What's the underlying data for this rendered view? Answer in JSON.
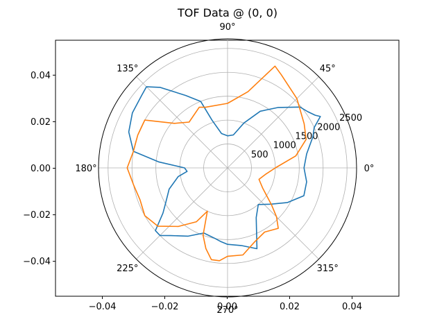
{
  "chart_data": {
    "type": "line",
    "title": "TOF Data @ (0, 0)",
    "cartesian_axes": {
      "x_ticks": [
        "−0.04",
        "−0.02",
        "0.00",
        "0.02",
        "0.04"
      ],
      "x_tick_values": [
        -0.04,
        -0.02,
        0.0,
        0.02,
        0.04
      ],
      "y_ticks": [
        "−0.04",
        "−0.02",
        "0.00",
        "0.02",
        "0.04"
      ],
      "y_tick_values": [
        -0.04,
        -0.02,
        0.0,
        0.02,
        0.04
      ],
      "xlim": [
        -0.055,
        0.055
      ],
      "ylim": [
        -0.055,
        0.055
      ]
    },
    "polar_axes": {
      "theta_ticks": [
        "0°",
        "45°",
        "90°",
        "135°",
        "180°",
        "225°",
        "270°",
        "315°"
      ],
      "theta_tick_values": [
        0,
        45,
        90,
        135,
        180,
        225,
        270,
        315
      ],
      "r_ticks": [
        "500",
        "1000",
        "1500",
        "2000",
        "2500"
      ],
      "r_tick_values": [
        500,
        1000,
        1500,
        2000,
        2500
      ],
      "rlim": [
        0,
        2700
      ],
      "grid": true,
      "label_angle_deg": 22.5
    },
    "series": [
      {
        "color": "#1f77b4",
        "points": [
          [
            0,
            1600
          ],
          [
            10,
            1680
          ],
          [
            20,
            1900
          ],
          [
            25,
            2000
          ],
          [
            29,
            2220
          ],
          [
            31,
            2140
          ],
          [
            35,
            2050
          ],
          [
            40,
            1980
          ],
          [
            50,
            1650
          ],
          [
            60,
            1370
          ],
          [
            70,
            1000
          ],
          [
            80,
            700
          ],
          [
            90,
            670
          ],
          [
            100,
            730
          ],
          [
            108,
            1050
          ],
          [
            112,
            1500
          ],
          [
            120,
            1750
          ],
          [
            130,
            2200
          ],
          [
            135,
            2400
          ],
          [
            140,
            2350
          ],
          [
            150,
            2300
          ],
          [
            160,
            2200
          ],
          [
            170,
            2000
          ],
          [
            175,
            1450
          ],
          [
            180,
            900
          ],
          [
            185,
            850
          ],
          [
            190,
            1050
          ],
          [
            200,
            1300
          ],
          [
            210,
            1500
          ],
          [
            215,
            1650
          ],
          [
            221,
            2000
          ],
          [
            225,
            2000
          ],
          [
            230,
            1850
          ],
          [
            240,
            1650
          ],
          [
            250,
            1450
          ],
          [
            260,
            1500
          ],
          [
            265,
            1550
          ],
          [
            270,
            1600
          ],
          [
            280,
            1650
          ],
          [
            290,
            1800
          ],
          [
            300,
            1200
          ],
          [
            310,
            1000
          ],
          [
            320,
            1180
          ],
          [
            330,
            1450
          ],
          [
            340,
            1700
          ],
          [
            350,
            1680
          ],
          [
            360,
            1600
          ]
        ]
      },
      {
        "color": "#ff7f0e",
        "points": [
          [
            0,
            1000
          ],
          [
            10,
            1450
          ],
          [
            20,
            1750
          ],
          [
            30,
            1850
          ],
          [
            45,
            2050
          ],
          [
            60,
            2250
          ],
          [
            65,
            2350
          ],
          [
            75,
            1650
          ],
          [
            90,
            1350
          ],
          [
            110,
            1350
          ],
          [
            115,
            1400
          ],
          [
            130,
            1250
          ],
          [
            140,
            1450
          ],
          [
            150,
            2000
          ],
          [
            160,
            2000
          ],
          [
            170,
            2000
          ],
          [
            180,
            2100
          ],
          [
            190,
            2000
          ],
          [
            200,
            1950
          ],
          [
            210,
            2000
          ],
          [
            220,
            1900
          ],
          [
            230,
            1600
          ],
          [
            240,
            1300
          ],
          [
            245,
            1000
          ],
          [
            250,
            1500
          ],
          [
            255,
            1750
          ],
          [
            260,
            1950
          ],
          [
            265,
            1950
          ],
          [
            270,
            1850
          ],
          [
            280,
            1850
          ],
          [
            290,
            1650
          ],
          [
            300,
            1550
          ],
          [
            310,
            1650
          ],
          [
            315,
            1450
          ],
          [
            320,
            1200
          ],
          [
            330,
            850
          ],
          [
            340,
            700
          ],
          [
            350,
            800
          ],
          [
            360,
            1000
          ]
        ]
      }
    ]
  }
}
